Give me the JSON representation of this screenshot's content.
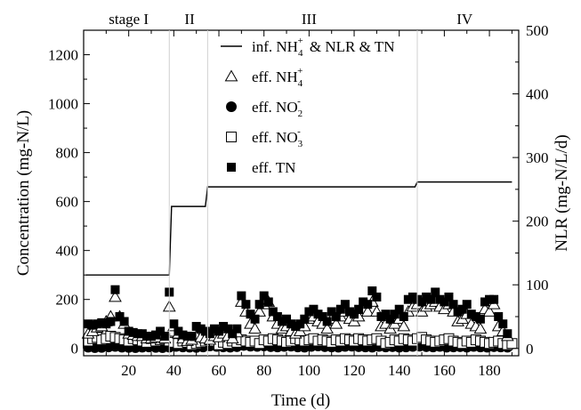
{
  "chart_data": {
    "type": "scatter",
    "title": "",
    "xlabel": "Time (d)",
    "ylabel": "Concentration (mg-N/L)",
    "y2label": "NLR (mg-N/L/d)",
    "xlim": [
      0,
      193
    ],
    "ylim": [
      -30,
      1300
    ],
    "y2lim": [
      -11.5,
      500
    ],
    "xticks": [
      20,
      40,
      60,
      80,
      100,
      120,
      140,
      160,
      180
    ],
    "yticks": [
      0,
      200,
      400,
      600,
      800,
      1000,
      1200
    ],
    "y2ticks": [
      0,
      100,
      200,
      300,
      400,
      500
    ],
    "stages": [
      {
        "label": "stage I",
        "x_center": 20
      },
      {
        "label": "II",
        "x_center": 47
      },
      {
        "label": "III",
        "x_center": 100
      },
      {
        "label": "IV",
        "x_center": 169
      }
    ],
    "stage_boundaries": [
      38,
      55,
      148
    ],
    "legend": {
      "position": "top-center",
      "entries": [
        {
          "marker": "line",
          "label": "inf. NH4+ & NLR & TN",
          "parts": [
            "inf. NH",
            "4",
            "+",
            " & NLR & TN"
          ]
        },
        {
          "marker": "triangle-open",
          "label": "eff. NH4+",
          "parts": [
            "eff. NH",
            "4",
            "+",
            ""
          ]
        },
        {
          "marker": "circle-filled",
          "label": "eff. NO2-",
          "parts": [
            "eff. NO",
            "2",
            "-",
            ""
          ]
        },
        {
          "marker": "square-open",
          "label": "eff. NO3-",
          "parts": [
            "eff. NO",
            "3",
            "-",
            ""
          ]
        },
        {
          "marker": "square-filled",
          "label": "eff. TN",
          "parts": [
            "eff. TN",
            "",
            "",
            ""
          ]
        }
      ]
    },
    "series": [
      {
        "name": "inf. NH4+ & NLR & TN",
        "type": "step-line",
        "axis": "left",
        "points": [
          [
            1,
            300
          ],
          [
            38,
            300
          ],
          [
            39,
            580
          ],
          [
            54,
            580
          ],
          [
            55,
            660
          ],
          [
            147,
            660
          ],
          [
            148,
            680
          ],
          [
            190,
            680
          ]
        ]
      },
      {
        "name": "eff. NH4+",
        "marker": "triangle-open",
        "axis": "left",
        "x": [
          2,
          4,
          6,
          8,
          10,
          12,
          14,
          16,
          18,
          20,
          22,
          24,
          26,
          28,
          30,
          32,
          34,
          36,
          38,
          40,
          42,
          44,
          46,
          48,
          50,
          52,
          54,
          56,
          58,
          60,
          62,
          64,
          66,
          68,
          70,
          72,
          74,
          76,
          78,
          80,
          82,
          84,
          86,
          88,
          90,
          92,
          94,
          96,
          98,
          100,
          102,
          104,
          106,
          108,
          110,
          112,
          114,
          116,
          118,
          120,
          122,
          124,
          126,
          128,
          130,
          132,
          134,
          136,
          138,
          140,
          142,
          144,
          146,
          148,
          150,
          152,
          154,
          156,
          158,
          160,
          162,
          164,
          166,
          168,
          170,
          172,
          174,
          176,
          178,
          180,
          182,
          184,
          186,
          188
        ],
        "y": [
          60,
          70,
          85,
          90,
          110,
          130,
          210,
          130,
          100,
          60,
          55,
          50,
          50,
          40,
          40,
          45,
          60,
          40,
          170,
          90,
          60,
          40,
          30,
          35,
          50,
          45,
          40,
          35,
          50,
          45,
          60,
          50,
          40,
          65,
          190,
          150,
          100,
          80,
          150,
          180,
          190,
          130,
          100,
          80,
          90,
          70,
          60,
          70,
          90,
          120,
          130,
          110,
          100,
          80,
          120,
          100,
          130,
          150,
          120,
          110,
          130,
          160,
          150,
          190,
          150,
          90,
          100,
          80,
          100,
          120,
          90,
          150,
          170,
          180,
          150,
          170,
          180,
          190,
          170,
          160,
          180,
          150,
          110,
          120,
          140,
          100,
          90,
          80,
          160,
          150,
          180,
          90,
          70,
          50
        ]
      },
      {
        "name": "eff. NO2-",
        "marker": "circle-filled",
        "axis": "left",
        "x": [
          2,
          5,
          8,
          11,
          14,
          17,
          20,
          23,
          26,
          29,
          32,
          35,
          38,
          41,
          44,
          47,
          50,
          53,
          56,
          59,
          62,
          65,
          68,
          71,
          74,
          77,
          80,
          83,
          86,
          89,
          92,
          95,
          98,
          101,
          104,
          107,
          110,
          113,
          116,
          119,
          122,
          125,
          128,
          131,
          134,
          137,
          140,
          143,
          146,
          149,
          152,
          155,
          158,
          161,
          164,
          167,
          170,
          173,
          176,
          179,
          182,
          185,
          188
        ],
        "y": [
          5,
          3,
          4,
          6,
          8,
          5,
          4,
          3,
          5,
          6,
          4,
          3,
          5,
          8,
          6,
          5,
          4,
          6,
          10,
          8,
          6,
          5,
          7,
          12,
          9,
          8,
          10,
          7,
          6,
          8,
          9,
          6,
          5,
          8,
          10,
          7,
          6,
          5,
          8,
          9,
          7,
          6,
          5,
          8,
          6,
          7,
          5,
          6,
          8,
          9,
          7,
          6,
          8,
          5,
          6,
          7,
          5,
          8,
          6,
          5,
          7,
          6,
          5
        ]
      },
      {
        "name": "eff. NO3-",
        "marker": "square-open",
        "axis": "left",
        "x": [
          2,
          4,
          6,
          8,
          10,
          12,
          14,
          16,
          18,
          20,
          22,
          24,
          26,
          28,
          30,
          32,
          34,
          36,
          38,
          40,
          42,
          44,
          46,
          48,
          50,
          52,
          54,
          56,
          58,
          60,
          62,
          64,
          66,
          68,
          70,
          72,
          74,
          76,
          78,
          80,
          82,
          84,
          86,
          88,
          90,
          92,
          94,
          96,
          98,
          100,
          102,
          104,
          106,
          108,
          110,
          112,
          114,
          116,
          118,
          120,
          122,
          124,
          126,
          128,
          130,
          132,
          134,
          136,
          138,
          140,
          142,
          144,
          146,
          148,
          150,
          152,
          154,
          156,
          158,
          160,
          162,
          164,
          166,
          168,
          170,
          172,
          174,
          176,
          178,
          180,
          182,
          184,
          186,
          188,
          190
        ],
        "y": [
          30,
          40,
          45,
          35,
          40,
          50,
          45,
          40,
          35,
          30,
          40,
          35,
          30,
          25,
          40,
          30,
          35,
          40,
          30,
          25,
          20,
          30,
          25,
          15,
          20,
          25,
          30,
          35,
          30,
          15,
          25,
          20,
          30,
          25,
          35,
          30,
          25,
          30,
          20,
          35,
          30,
          40,
          35,
          30,
          25,
          30,
          40,
          35,
          30,
          35,
          40,
          30,
          35,
          30,
          25,
          35,
          30,
          40,
          35,
          30,
          40,
          35,
          30,
          35,
          40,
          30,
          20,
          25,
          35,
          30,
          40,
          35,
          30,
          40,
          45,
          35,
          30,
          25,
          30,
          35,
          40,
          30,
          25,
          20,
          30,
          25,
          35,
          30,
          25,
          20,
          25,
          30,
          20,
          15,
          20
        ]
      },
      {
        "name": "eff. TN",
        "marker": "square-filled",
        "axis": "left",
        "x": [
          2,
          4,
          6,
          8,
          10,
          12,
          14,
          16,
          18,
          20,
          22,
          24,
          26,
          28,
          30,
          32,
          34,
          36,
          38,
          40,
          42,
          44,
          46,
          48,
          50,
          52,
          54,
          56,
          58,
          60,
          62,
          64,
          66,
          68,
          70,
          72,
          74,
          76,
          78,
          80,
          82,
          84,
          86,
          88,
          90,
          92,
          94,
          96,
          98,
          100,
          102,
          104,
          106,
          108,
          110,
          112,
          114,
          116,
          118,
          120,
          122,
          124,
          126,
          128,
          130,
          132,
          134,
          136,
          138,
          140,
          142,
          144,
          146,
          148,
          150,
          152,
          154,
          156,
          158,
          160,
          162,
          164,
          166,
          168,
          170,
          172,
          174,
          176,
          178,
          180,
          182,
          184,
          186,
          188
        ],
        "y": [
          100,
          95,
          100,
          105,
          100,
          110,
          240,
          130,
          110,
          70,
          65,
          60,
          60,
          50,
          50,
          55,
          70,
          50,
          230,
          100,
          70,
          55,
          50,
          50,
          90,
          80,
          70,
          60,
          80,
          70,
          90,
          80,
          60,
          80,
          215,
          180,
          140,
          120,
          180,
          215,
          190,
          150,
          130,
          110,
          120,
          100,
          90,
          100,
          120,
          150,
          160,
          140,
          130,
          110,
          150,
          130,
          160,
          180,
          150,
          140,
          160,
          190,
          180,
          235,
          210,
          130,
          140,
          120,
          140,
          160,
          130,
          200,
          210,
          200,
          190,
          210,
          200,
          230,
          200,
          190,
          210,
          180,
          150,
          160,
          180,
          140,
          130,
          120,
          190,
          200,
          200,
          130,
          100,
          60
        ]
      }
    ]
  }
}
